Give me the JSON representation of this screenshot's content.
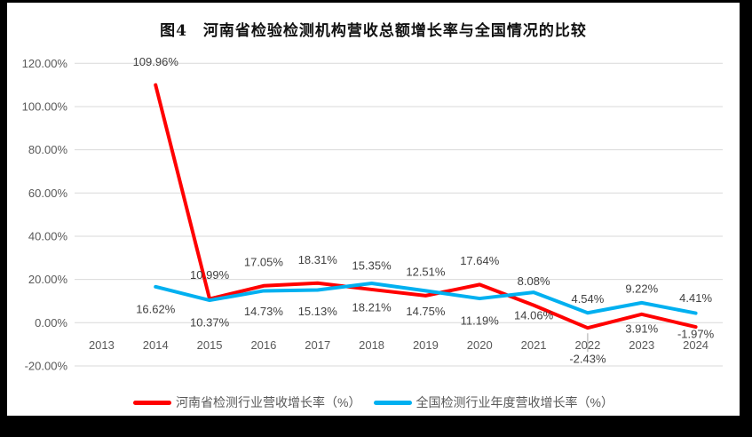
{
  "chart_data": {
    "type": "line",
    "title": "图4　河南省检验检测机构营收总额增长率与全国情况的比较",
    "categories": [
      "2013",
      "2014",
      "2015",
      "2016",
      "2017",
      "2018",
      "2019",
      "2020",
      "2021",
      "2022",
      "2023",
      "2024"
    ],
    "series": [
      {
        "name": "河南省检测行业营收增长率（%）",
        "color": "#ff0000",
        "label_position": "above",
        "values": [
          null,
          109.96,
          10.99,
          17.05,
          18.31,
          15.35,
          12.51,
          17.64,
          8.08,
          -2.43,
          3.91,
          -1.97
        ]
      },
      {
        "name": "全国检测行业年度营收增长率（%）",
        "color": "#00b0f0",
        "label_position": "below",
        "values": [
          null,
          16.62,
          10.37,
          14.73,
          15.13,
          18.21,
          14.75,
          11.19,
          14.06,
          4.54,
          9.22,
          4.41
        ]
      }
    ],
    "y_axis": {
      "min": -20,
      "max": 120,
      "step": 20,
      "tick_values": [
        120,
        100,
        80,
        60,
        40,
        20,
        0,
        -20
      ],
      "tick_labels": [
        "120.00%",
        "100.00%",
        "80.00%",
        "60.00%",
        "40.00%",
        "20.00%",
        "0.00%",
        "-20.00%"
      ]
    },
    "xlabel": "",
    "ylabel": "",
    "grid": true,
    "legend_position": "bottom",
    "colors": {
      "grid": "#d9d9d9",
      "axis_text": "#595959",
      "data_label_text": "#404040",
      "leader_line": "#a6a6a6",
      "plot_background": "#ffffff",
      "frame": "#000000"
    }
  }
}
